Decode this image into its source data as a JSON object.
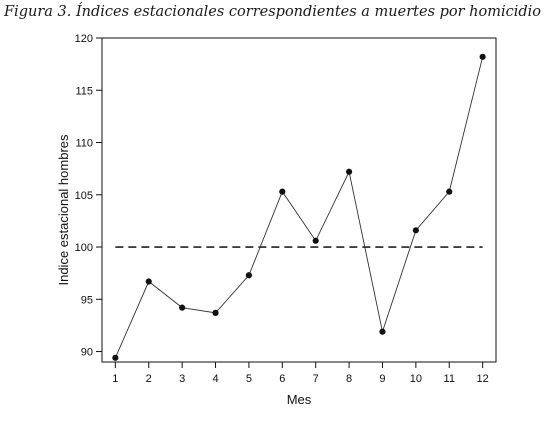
{
  "chart_data": {
    "type": "line",
    "title": "Figura 3. Índices estacionales correspondientes a muertes por homicidio",
    "xlabel": "Mes",
    "ylabel": "Indice estacional hombres",
    "x": [
      1,
      2,
      3,
      4,
      5,
      6,
      7,
      8,
      9,
      10,
      11,
      12
    ],
    "x_ticks": [
      "1",
      "2",
      "3",
      "4",
      "5",
      "6",
      "7",
      "8",
      "9",
      "10",
      "11",
      "12"
    ],
    "y_ticks": [
      "90",
      "95",
      "100",
      "105",
      "110",
      "115",
      "120"
    ],
    "ylim": [
      89,
      120
    ],
    "xlim": [
      0.6,
      12.4
    ],
    "series": [
      {
        "values": [
          89.4,
          96.7,
          94.2,
          93.7,
          97.3,
          105.3,
          100.6,
          107.2,
          91.9,
          101.6,
          105.3,
          118.2
        ]
      }
    ],
    "reference_line": {
      "y": 100,
      "style": "dashed"
    },
    "grid": false,
    "colors": {
      "line": "#333333",
      "marker": "#111111",
      "reference": "#222222",
      "axes": "#111111"
    }
  }
}
